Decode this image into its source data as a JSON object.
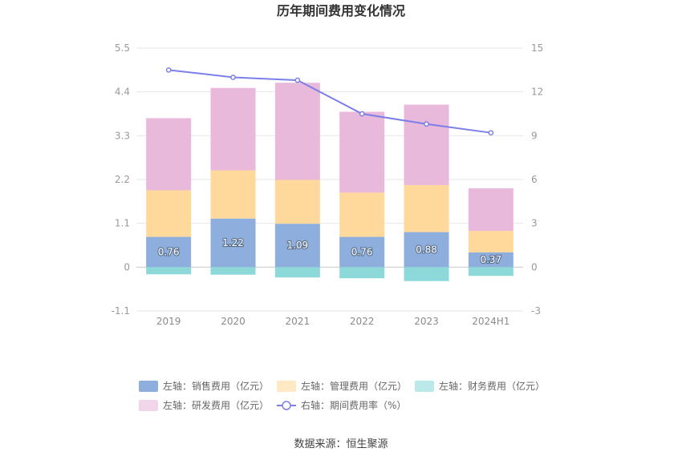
{
  "chart_data": {
    "type": "bar",
    "title": "历年期间费用变化情况",
    "categories": [
      "2019",
      "2020",
      "2021",
      "2022",
      "2023",
      "2024H1"
    ],
    "left_axis": {
      "min": -1.1,
      "max": 5.5,
      "ticks": [
        "5.5",
        "4.4",
        "3.3",
        "2.2",
        "1.1",
        "0",
        "-1.1"
      ]
    },
    "right_axis": {
      "min": -3,
      "max": 15,
      "ticks": [
        "15",
        "12",
        "9",
        "6",
        "3",
        "0",
        "-3"
      ]
    },
    "series": [
      {
        "name": "左轴：销售费用（亿元）",
        "color": "#8eaedd",
        "values": [
          0.76,
          1.22,
          1.09,
          0.76,
          0.88,
          0.37
        ],
        "labels": [
          "0.76",
          "1.22",
          "1.09",
          "0.76",
          "0.88",
          "0.37"
        ]
      },
      {
        "name": "左轴：管理费用（亿元）",
        "color": "#ffd99b",
        "values": [
          1.17,
          1.21,
          1.1,
          1.11,
          1.18,
          0.54
        ]
      },
      {
        "name": "左轴：财务费用（亿元）",
        "color": "#8dd8d8",
        "values": [
          -0.18,
          -0.19,
          -0.26,
          -0.28,
          -0.35,
          -0.22
        ]
      },
      {
        "name": "左轴：研发费用（亿元）",
        "color": "#e8b9da",
        "values": [
          1.81,
          2.07,
          2.44,
          2.03,
          2.02,
          1.07
        ]
      },
      {
        "name": "右轴：期间费用率（%）",
        "color": "#7b7fe8",
        "type": "line",
        "axis": "right",
        "values": [
          13.5,
          13.0,
          12.8,
          10.5,
          9.8,
          9.2
        ]
      }
    ],
    "grid": true,
    "legend_position": "bottom"
  },
  "source_text": "数据来源：恒生聚源"
}
